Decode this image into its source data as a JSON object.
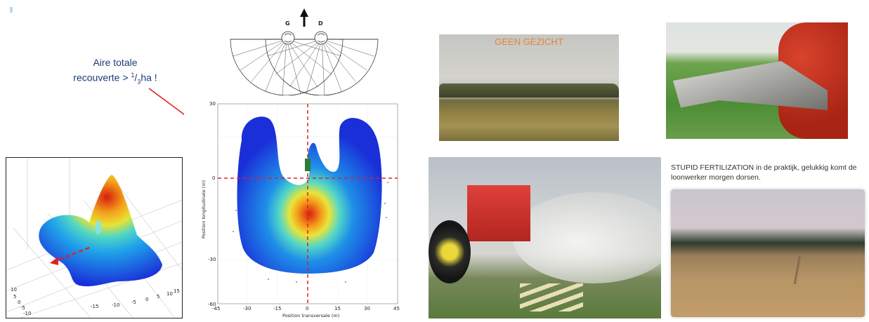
{
  "spread_diagram": {
    "annotation_line1": "Aire totale",
    "annotation_line2_prefix": "recouverte > ",
    "annotation_fraction_num": "1",
    "annotation_fraction_den": "3",
    "annotation_line2_suffix": "ha !",
    "disc_left_label": "G",
    "disc_right_label": "D"
  },
  "scatter_plot": {
    "ylabel": "Position longitudinale (m)",
    "xlabel": "Position transversale (m)",
    "x_ticks": [
      "-45",
      "-30",
      "-15",
      "0",
      "15",
      "30",
      "45"
    ],
    "y_ticks": [
      "30",
      "0",
      "-30",
      "-60"
    ]
  },
  "surface_plot": {
    "y_ticks": [
      "10",
      "5",
      "0",
      "-5",
      "-10"
    ],
    "x_ticks": [
      "-15",
      "-10",
      "-5",
      "0",
      "5",
      "10",
      "15"
    ]
  },
  "photo_field": {
    "overlay_text": "GEEN GEZICHT"
  },
  "caption_right": {
    "text": "STUPID FERTILIZATION  in de praktijk, gelukkig komt de loonwerker morgen dorsen."
  },
  "colors": {
    "arrow_red": "#e02020",
    "overlay_orange": "#e8823a",
    "heat_blue": "#1a2fd8",
    "heat_red": "#d81e10"
  }
}
